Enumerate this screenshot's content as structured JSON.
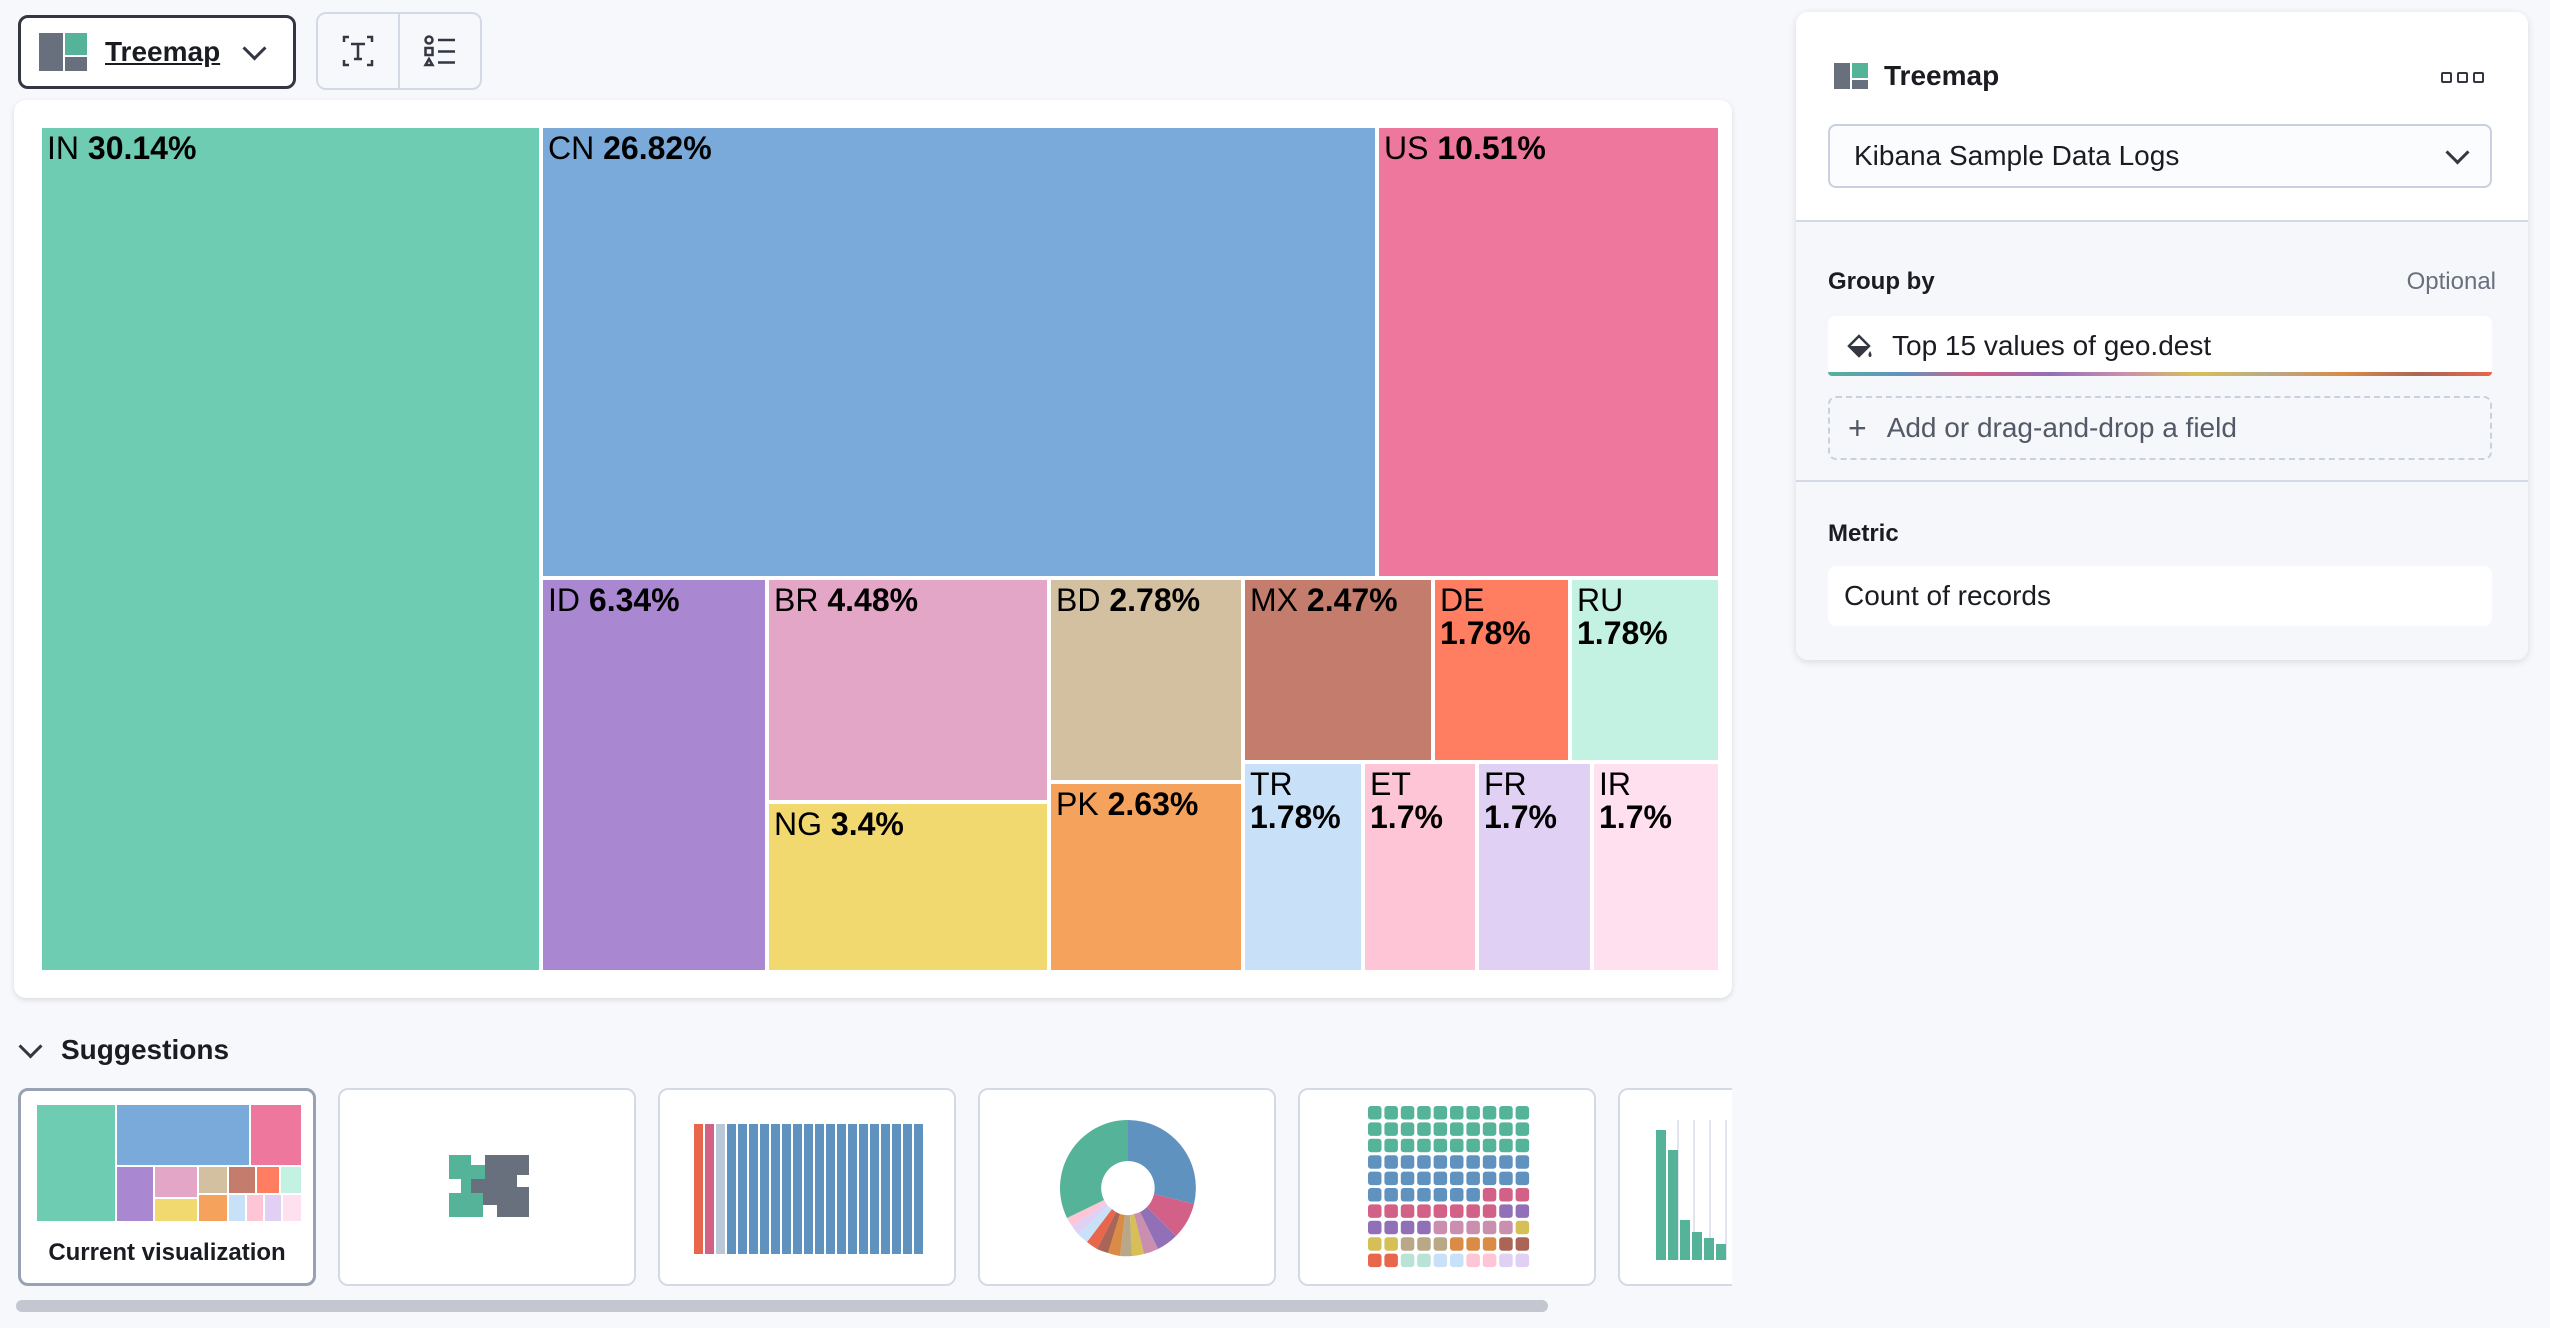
{
  "toolbar": {
    "vis_type_label": "Treemap",
    "icons": [
      "treemap-icon",
      "chevron-down-icon",
      "text-label-icon",
      "legend-list-icon"
    ]
  },
  "chart_data": {
    "type": "treemap",
    "title": "",
    "group_by": "geo.dest",
    "metric": "Count of records",
    "tiles": [
      {
        "label": "IN",
        "value": "30.14%",
        "percent": 30.14,
        "color": "#6dccb1"
      },
      {
        "label": "CN",
        "value": "26.82%",
        "percent": 26.82,
        "color": "#79aad9"
      },
      {
        "label": "US",
        "value": "10.51%",
        "percent": 10.51,
        "color": "#ee789d"
      },
      {
        "label": "ID",
        "value": "6.34%",
        "percent": 6.34,
        "color": "#a987d1"
      },
      {
        "label": "BR",
        "value": "4.48%",
        "percent": 4.48,
        "color": "#e4a6c7"
      },
      {
        "label": "NG",
        "value": "3.4%",
        "percent": 3.4,
        "color": "#f1d86f"
      },
      {
        "label": "BD",
        "value": "2.78%",
        "percent": 2.78,
        "color": "#d2c0a0"
      },
      {
        "label": "PK",
        "value": "2.63%",
        "percent": 2.63,
        "color": "#f5a35c"
      },
      {
        "label": "MX",
        "value": "2.47%",
        "percent": 2.47,
        "color": "#c47c6c"
      },
      {
        "label": "DE",
        "value": "1.78%",
        "percent": 1.78,
        "color": "#ff7e62"
      },
      {
        "label": "RU",
        "value": "1.78%",
        "percent": 1.78,
        "color": "#c4f2e2"
      },
      {
        "label": "TR",
        "value": "1.78%",
        "percent": 1.78,
        "color": "#c9e1f8"
      },
      {
        "label": "ET",
        "value": "1.7%",
        "percent": 1.7,
        "color": "#fec5d6"
      },
      {
        "label": "FR",
        "value": "1.7%",
        "percent": 1.7,
        "color": "#e0d0f4"
      },
      {
        "label": "IR",
        "value": "1.7%",
        "percent": 1.7,
        "color": "#ffe0ee"
      }
    ]
  },
  "suggestions": {
    "heading": "Suggestions",
    "current_caption": "Current visualization",
    "items": [
      "treemap",
      "table",
      "bar-chart",
      "donut-chart",
      "waffle-chart",
      "histogram"
    ]
  },
  "config_panel": {
    "title": "Treemap",
    "data_view": "Kibana Sample Data Logs",
    "group_by_label": "Group by",
    "optional_label": "Optional",
    "group_by_value": "Top 15 values of geo.dest",
    "add_field_label": "Add or drag-and-drop a field",
    "metric_label": "Metric",
    "metric_value": "Count of records"
  }
}
